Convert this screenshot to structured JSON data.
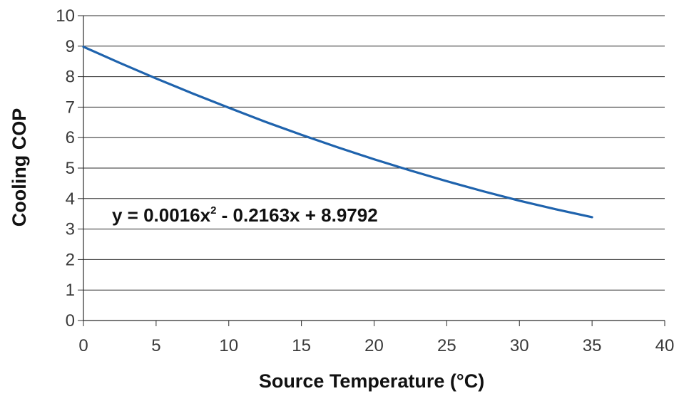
{
  "chart_data": {
    "type": "line",
    "title": "",
    "xlabel": "Source Temperature (°C)",
    "ylabel": "Cooling COP",
    "xlim": [
      0,
      40
    ],
    "ylim": [
      0,
      10
    ],
    "x_ticks": [
      "0",
      "5",
      "10",
      "15",
      "20",
      "25",
      "30",
      "35",
      "40"
    ],
    "y_ticks": [
      "0",
      "1",
      "2",
      "3",
      "4",
      "5",
      "6",
      "7",
      "8",
      "9",
      "10"
    ],
    "grid": "horizontal",
    "legend": "none",
    "line_color": "#1f63ad",
    "series": [
      {
        "x": [
          0,
          2.5,
          5,
          7.5,
          10,
          12.5,
          15,
          17.5,
          20,
          22.5,
          25,
          27.5,
          30,
          32.5,
          35
        ],
        "values": [
          8.98,
          8.45,
          7.94,
          7.45,
          6.98,
          6.52,
          6.09,
          5.68,
          5.29,
          4.92,
          4.57,
          4.24,
          3.93,
          3.65,
          3.39
        ]
      }
    ],
    "annotation": {
      "main": "y = 0.0016x",
      "sup": "2",
      "rest": " - 0.2163x + 8.9792"
    }
  }
}
